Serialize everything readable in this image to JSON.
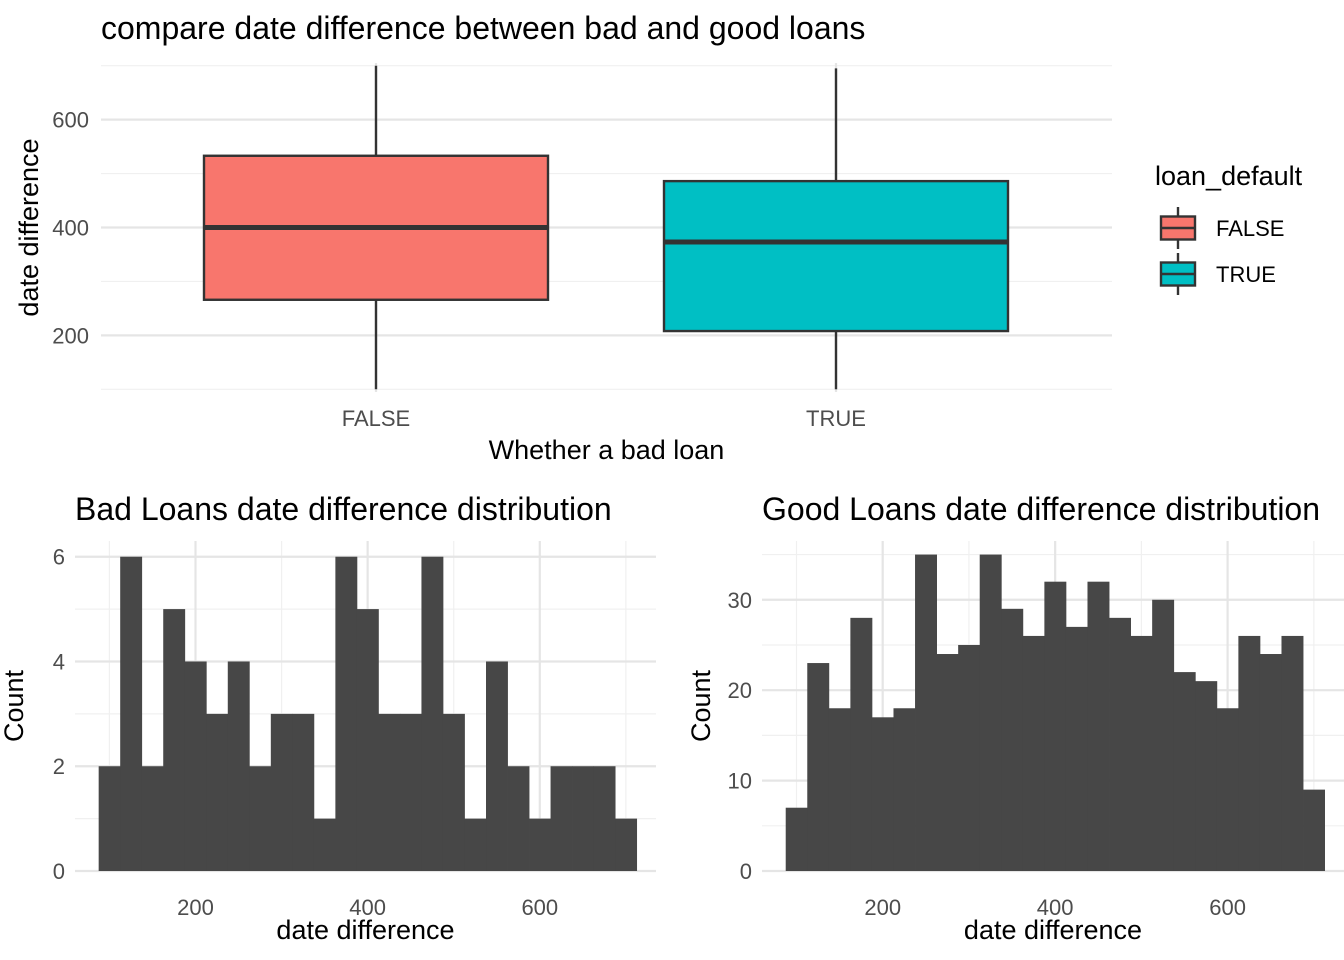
{
  "chart_data": [
    {
      "type": "boxplot",
      "title": "compare date difference between bad and good loans",
      "xlabel": "Whether a bad loan",
      "ylabel": "date difference",
      "categories": [
        "FALSE",
        "TRUE"
      ],
      "yticks": [
        200,
        400,
        600
      ],
      "ylim": [
        95,
        705
      ],
      "boxes": [
        {
          "category": "FALSE",
          "min": 100,
          "q1": 266,
          "median": 400,
          "q3": 533,
          "max": 700,
          "color": "#F8766D"
        },
        {
          "category": "TRUE",
          "min": 100,
          "q1": 208,
          "median": 373,
          "q3": 486,
          "max": 695,
          "color": "#00BFC4"
        }
      ],
      "legend": {
        "title": "loan_default",
        "position": "right",
        "entries": [
          "FALSE",
          "TRUE"
        ]
      },
      "grid": true
    },
    {
      "type": "histogram",
      "title": "Bad Loans date difference distribution",
      "xlabel": "date difference",
      "ylabel": "Count",
      "xticks": [
        200,
        400,
        600
      ],
      "yticks": [
        0,
        2,
        4,
        6
      ],
      "xlim": [
        60,
        735
      ],
      "ylim": [
        0,
        6.3
      ],
      "bin_start": 87.5,
      "bin_width": 25,
      "counts": [
        2,
        6,
        2,
        5,
        4,
        3,
        4,
        2,
        3,
        3,
        1,
        6,
        5,
        3,
        3,
        6,
        3,
        1,
        4,
        2,
        1,
        2,
        2,
        2,
        1
      ],
      "bar_color": "#474747",
      "grid": true
    },
    {
      "type": "histogram",
      "title": "Good Loans date difference distribution",
      "xlabel": "date difference",
      "ylabel": "Count",
      "xticks": [
        200,
        400,
        600
      ],
      "yticks": [
        0,
        10,
        20,
        30
      ],
      "xlim": [
        60,
        735
      ],
      "ylim": [
        0,
        36.5
      ],
      "bin_start": 87.5,
      "bin_width": 25,
      "counts": [
        7,
        23,
        18,
        28,
        17,
        18,
        35,
        24,
        25,
        35,
        29,
        26,
        32,
        27,
        32,
        28,
        26,
        30,
        22,
        21,
        18,
        26,
        24,
        26,
        9
      ],
      "bar_color": "#474747",
      "grid": true
    }
  ]
}
